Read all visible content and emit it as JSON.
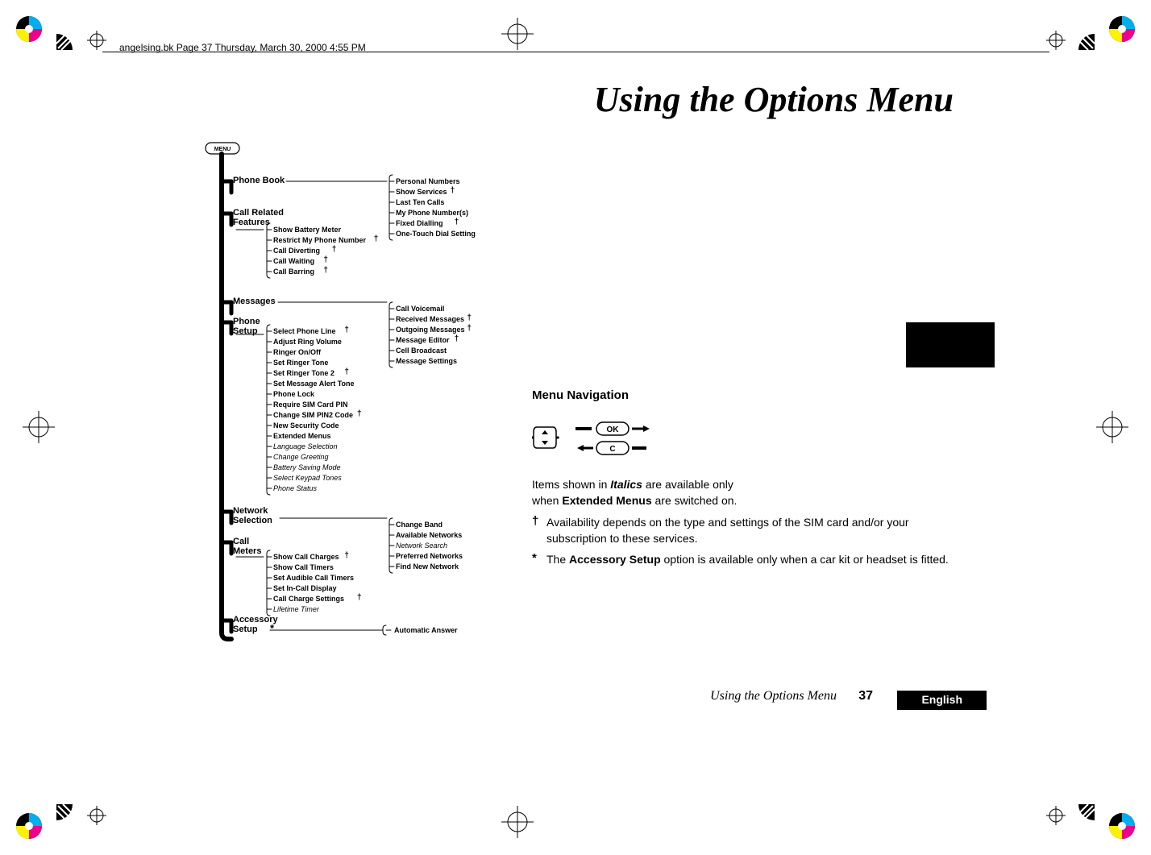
{
  "path_text": "angelsing.bk  Page 37  Thursday, March 30, 2000  4:55 PM",
  "big_title": "Using the Options Menu",
  "footer": {
    "title_italic": "Using the Options Menu",
    "page_number": "37",
    "language": "English"
  },
  "colors": {
    "text": "#000000",
    "bg": "#ffffff",
    "registration_gray": "#888888",
    "wheel": [
      "#00aeef",
      "#ec008c",
      "#fff200",
      "#000000"
    ]
  },
  "menu_button": "MENU",
  "tree": {
    "trunk_color": "#000000",
    "trunk_width": 6,
    "main": [
      {
        "label": "Phone Book",
        "bold": true
      },
      {
        "label": "Call Related Features",
        "bold": true,
        "sub": [
          {
            "t": "Show Battery Meter"
          },
          {
            "t": "Restrict My Phone Number",
            "dag": true
          },
          {
            "t": "Call Diverting",
            "dag": true
          },
          {
            "t": "Call Waiting",
            "dag": true
          },
          {
            "t": "Call Barring",
            "dag": true
          }
        ]
      },
      {
        "label": "Messages",
        "bold": true
      },
      {
        "label": "Phone Setup",
        "bold": true,
        "sub": [
          {
            "t": "Select Phone Line",
            "dag": true
          },
          {
            "t": "Adjust Ring Volume"
          },
          {
            "t": "Ringer On/Off"
          },
          {
            "t": "Set Ringer Tone"
          },
          {
            "t": "Set Ringer Tone 2",
            "dag": true
          },
          {
            "t": "Set Message Alert Tone"
          },
          {
            "t": "Phone Lock"
          },
          {
            "t": "Require SIM Card PIN"
          },
          {
            "t": "Change SIM PIN2 Code",
            "dag": true
          },
          {
            "t": "New Security Code"
          },
          {
            "t": "Extended Menus"
          },
          {
            "t": "Language Selection",
            "italic": true
          },
          {
            "t": "Change Greeting",
            "italic": true
          },
          {
            "t": "Battery Saving Mode",
            "italic": true
          },
          {
            "t": "Select Keypad Tones",
            "italic": true
          },
          {
            "t": "Phone Status",
            "italic": true
          }
        ]
      },
      {
        "label": "Network Selection",
        "bold": true
      },
      {
        "label": "Call Meters",
        "bold": true,
        "sub": [
          {
            "t": "Show Call Charges",
            "dag": true
          },
          {
            "t": "Show Call Timers"
          },
          {
            "t": "Set Audible Call Timers"
          },
          {
            "t": "Set In-Call Display"
          },
          {
            "t": "Call Charge Settings",
            "dag": true
          },
          {
            "t": "Lifetime Timer",
            "italic": true
          }
        ]
      },
      {
        "label": "Accessory Setup",
        "bold": true,
        "star": true
      }
    ],
    "phonebook_sub": [
      {
        "t": "Personal Numbers"
      },
      {
        "t": "Show Services",
        "dag": true
      },
      {
        "t": "Last Ten Calls"
      },
      {
        "t": "My Phone Number(s)"
      },
      {
        "t": "Fixed Dialling",
        "dag": true
      },
      {
        "t": "One-Touch Dial Setting"
      }
    ],
    "messages_sub": [
      {
        "t": "Call Voicemail"
      },
      {
        "t": "Received Messages",
        "dag": true
      },
      {
        "t": "Outgoing Messages",
        "dag": true
      },
      {
        "t": "Message Editor",
        "dag": true
      },
      {
        "t": "Cell Broadcast"
      },
      {
        "t": "Message Settings"
      }
    ],
    "network_sub": [
      {
        "t": "Change Band"
      },
      {
        "t": "Available Networks"
      },
      {
        "t": "Network Search",
        "italic": true
      },
      {
        "t": "Preferred Networks"
      },
      {
        "t": "Find New Network"
      }
    ],
    "accessory_sub": [
      {
        "t": "Automatic Answer"
      }
    ]
  },
  "notes": {
    "heading": "Menu Navigation",
    "ok_label": "OK",
    "c_label": "C",
    "line1_a": "Items shown in ",
    "line1_b": "Italics",
    "line1_c": " are available only",
    "line2_a": "when ",
    "line2_b": "Extended Menus",
    "line2_c": " are switched on.",
    "dagger": "†",
    "dagger_text": "Availability depends on the type and settings of the SIM card and/or your subscription to these services.",
    "star": "*",
    "star_text_a": "The ",
    "star_text_b": "Accessory Setup",
    "star_text_c": " option is available only when a car kit or headset is fitted."
  }
}
